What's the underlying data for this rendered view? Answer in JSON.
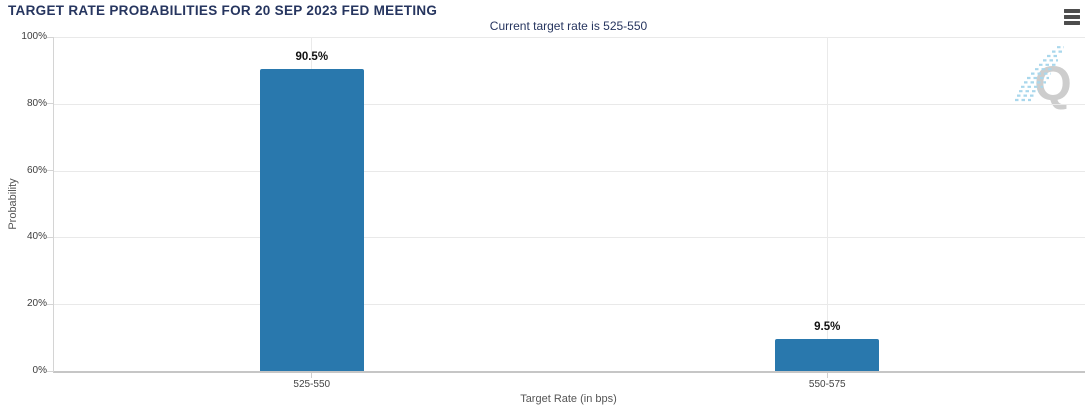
{
  "header": {
    "title": "TARGET RATE PROBABILITIES FOR 20 SEP 2023 FED MEETING"
  },
  "icons": {
    "menu": "hamburger-menu-icon",
    "watermark": "q-logo-watermark"
  },
  "watermark": {
    "letter": "Q"
  },
  "colors": {
    "title_navy": "#26355f",
    "bar_blue": "#2978ad",
    "gridline": "#e9e9e9",
    "axis_line": "#c6c6c6",
    "menu_icon": "#4d4d4d",
    "watermark_gray": "#cdcdcd",
    "watermark_blue": "#a9d7ec"
  },
  "chart_data": {
    "type": "bar",
    "title": "TARGET RATE PROBABILITIES FOR 20 SEP 2023 FED MEETING",
    "subtitle": "Current target rate is 525-550",
    "categories": [
      "525-550",
      "550-575"
    ],
    "values": [
      90.5,
      9.5
    ],
    "value_labels": [
      "90.5%",
      "9.5%"
    ],
    "xlabel": "Target Rate (in bps)",
    "ylabel": "Probability",
    "ylim": [
      0,
      100
    ],
    "ytick_step": 20,
    "ytick_labels": [
      "0%",
      "20%",
      "40%",
      "60%",
      "80%",
      "100%"
    ],
    "grid": true,
    "legend": "none"
  }
}
